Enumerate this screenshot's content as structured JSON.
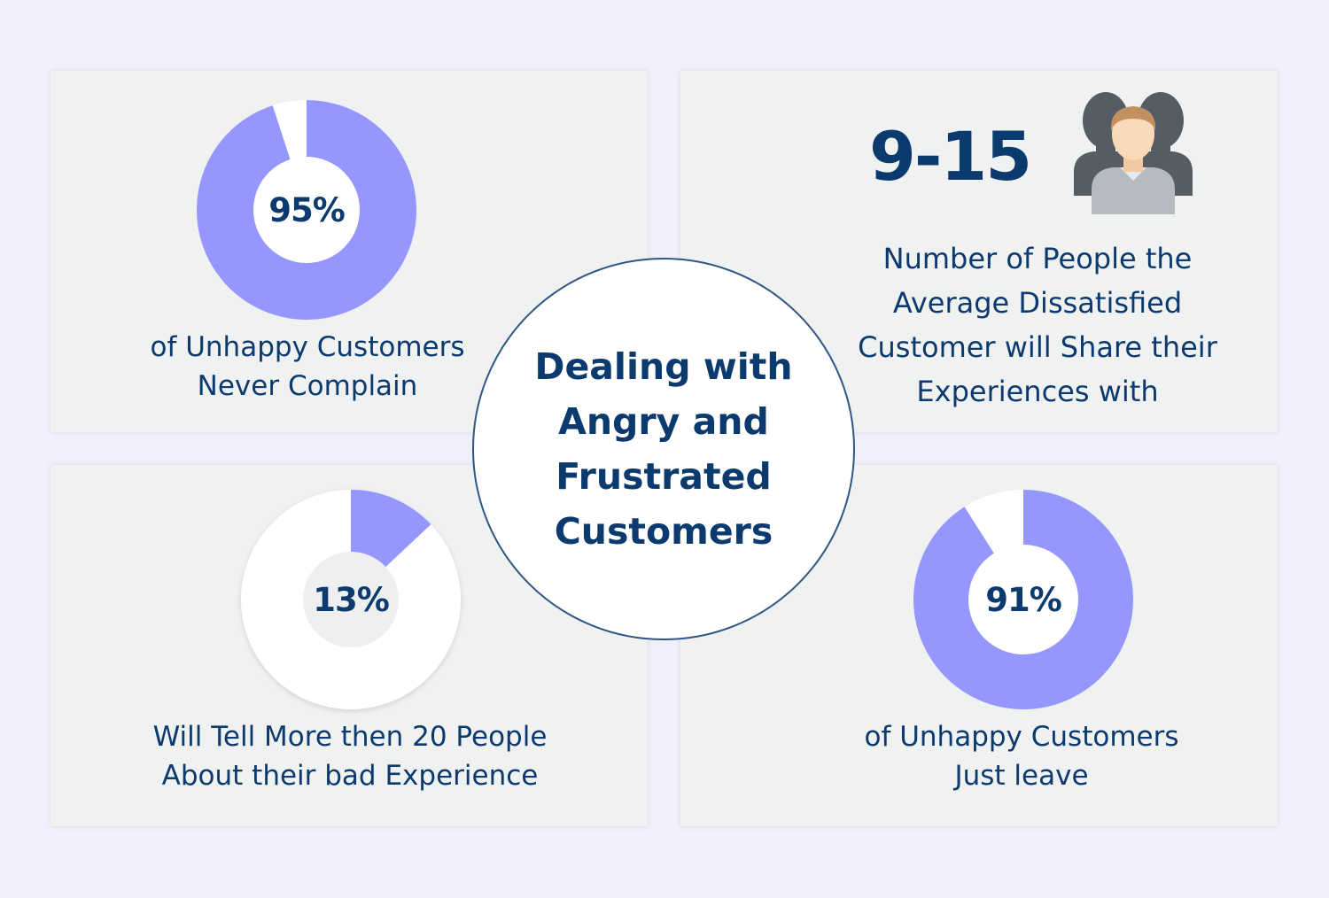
{
  "title": "Dealing with\nAngry and\nFrustrated\nCustomers",
  "colors": {
    "accent": "#9597ff",
    "ring_empty": "#ffffff",
    "text": "#0b3a6e",
    "panel": "#f0f1f1",
    "background": "#f1f0fd"
  },
  "stats": [
    {
      "id": "never-complain",
      "value_label": "95%",
      "fraction": 0.95,
      "caption": "of Unhappy Customers\nNever Complain"
    },
    {
      "id": "share-count",
      "value_label": "9-15",
      "icon": "people-icon",
      "caption": "Number of People the\nAverage Dissatisfied\nCustomer will Share their\nExperiences with"
    },
    {
      "id": "tell-20",
      "value_label": "13%",
      "fraction": 0.13,
      "caption": "Will Tell More then 20 People\nAbout their bad Experience"
    },
    {
      "id": "just-leave",
      "value_label": "91%",
      "fraction": 0.91,
      "caption": "of Unhappy Customers\nJust leave"
    }
  ]
}
